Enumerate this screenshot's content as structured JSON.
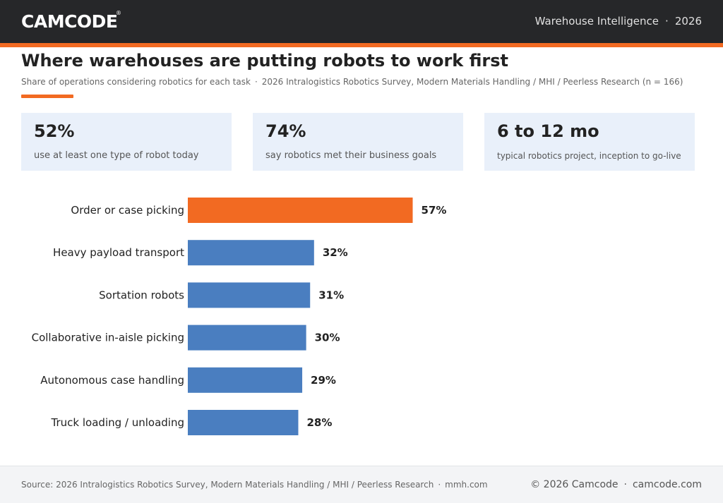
{
  "header": {
    "logo_text": "CAMCODE",
    "logo_mark": "®",
    "section": "Warehouse Intelligence",
    "year": "2026",
    "separator": "·"
  },
  "title": "Where warehouses are putting robots to work first",
  "subtitle": {
    "description": "Share of operations considering robotics for each task",
    "separator": "·",
    "source": "2026 Intralogistics Robotics Survey, Modern Materials Handling / MHI / Peerless Research (n = 166)"
  },
  "kpis": [
    {
      "value": "52%",
      "label": "use at least one type of robot today"
    },
    {
      "value": "74%",
      "label": "say robotics met their business goals"
    },
    {
      "value": "6 to 12 mo",
      "label": "typical robotics project, inception to go-live"
    }
  ],
  "chart_data": {
    "type": "bar",
    "orientation": "horizontal",
    "categories": [
      "Order or case picking",
      "Heavy payload transport",
      "Sortation robots",
      "Collaborative in-aisle picking",
      "Autonomous case handling",
      "Truck loading / unloading"
    ],
    "values": [
      57,
      32,
      31,
      30,
      29,
      28
    ],
    "value_suffix": "%",
    "xlim": [
      0,
      100
    ],
    "highlight_index": 0,
    "colors": {
      "highlight": "#f26a22",
      "default": "#4a7ec0"
    },
    "grid": false,
    "title": "",
    "xlabel": "",
    "ylabel": ""
  },
  "footer": {
    "source": "Source: 2026 Intralogistics Robotics Survey, Modern Materials Handling / MHI / Peerless Research",
    "source_separator": "·",
    "source_site": "mmh.com",
    "copyright": "© 2026 Camcode",
    "site_separator": "·",
    "site": "camcode.com"
  },
  "colors": {
    "topbar": "#262729",
    "accent": "#f26a22",
    "bar": "#4a7ec0",
    "kpi_bg": "#e9f0fa"
  }
}
